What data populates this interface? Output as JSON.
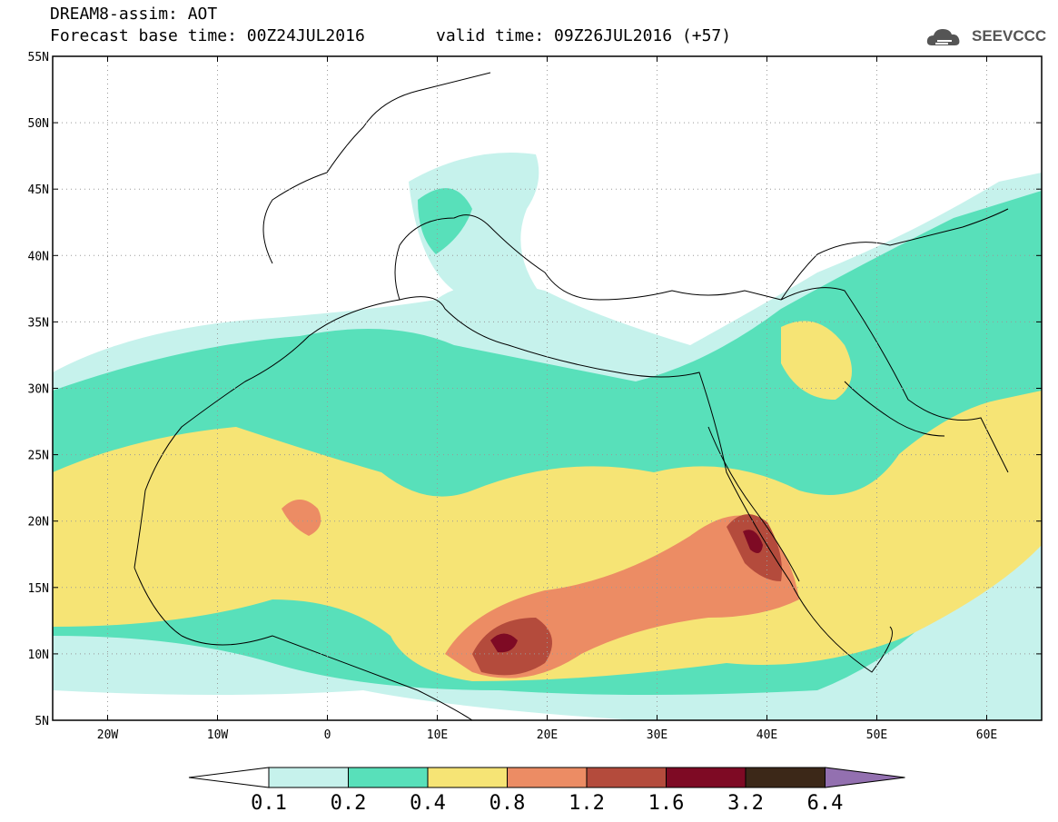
{
  "header": {
    "line1": "DREAM8-assim: AOT",
    "line2a": "Forecast base time: 00Z24JUL2016",
    "line2b": "valid time: 09Z26JUL2016 (+57)",
    "logo": "SEEVCCC"
  },
  "map": {
    "lon_range": [
      -25,
      65
    ],
    "lat_range": [
      5,
      55
    ],
    "lat_ticks": [
      {
        "v": 55,
        "label": "55N"
      },
      {
        "v": 50,
        "label": "50N"
      },
      {
        "v": 45,
        "label": "45N"
      },
      {
        "v": 40,
        "label": "40N"
      },
      {
        "v": 35,
        "label": "35N"
      },
      {
        "v": 30,
        "label": "30N"
      },
      {
        "v": 25,
        "label": "25N"
      },
      {
        "v": 20,
        "label": "20N"
      },
      {
        "v": 15,
        "label": "15N"
      },
      {
        "v": 10,
        "label": "10N"
      },
      {
        "v": 5,
        "label": "5N"
      }
    ],
    "lon_ticks": [
      {
        "v": -20,
        "label": "20W"
      },
      {
        "v": -10,
        "label": "10W"
      },
      {
        "v": 0,
        "label": "0"
      },
      {
        "v": 10,
        "label": "10E"
      },
      {
        "v": 20,
        "label": "20E"
      },
      {
        "v": 30,
        "label": "30E"
      },
      {
        "v": 40,
        "label": "40E"
      },
      {
        "v": 50,
        "label": "50E"
      },
      {
        "v": 60,
        "label": "60E"
      }
    ]
  },
  "colorbar": {
    "colors": [
      "#c6f2ec",
      "#58e0ba",
      "#f6e475",
      "#ec8c64",
      "#b44b3c",
      "#7e0a24",
      "#3c2818",
      "#9370b0"
    ],
    "labels": [
      "0.1",
      "0.2",
      "0.4",
      "0.8",
      "1.2",
      "1.6",
      "3.2",
      "6.4"
    ]
  }
}
